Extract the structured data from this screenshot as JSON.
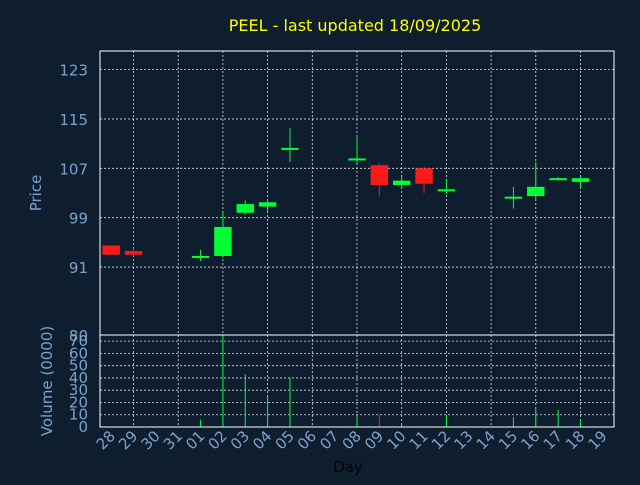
{
  "chart_data": {
    "type": "candlestick",
    "title": "PEEL - last updated 18/09/2025",
    "price_panel": {
      "ylabel": "Price",
      "ylim": [
        80,
        126
      ],
      "yticks": [
        91,
        99,
        107,
        115,
        123
      ],
      "grid": true
    },
    "volume_panel": {
      "ylabel": "Volume (0000)",
      "ylim": [
        0,
        75
      ],
      "yticks": [
        0,
        10,
        20,
        30,
        40,
        50,
        60,
        70
      ],
      "bottom_tick": "80",
      "grid": true
    },
    "xlabel": "Day",
    "categories": [
      "28",
      "29",
      "30",
      "31",
      "01",
      "02",
      "03",
      "04",
      "05",
      "06",
      "07",
      "08",
      "09",
      "10",
      "11",
      "12",
      "13",
      "14",
      "15",
      "16",
      "17",
      "18",
      "19"
    ],
    "candles": [
      {
        "x": "28",
        "open": 94.5,
        "high": 94.5,
        "low": 93.0,
        "close": 93.0,
        "volume": 0
      },
      {
        "x": "29",
        "open": 93.6,
        "high": 94.0,
        "low": 92.8,
        "close": 93.0,
        "volume": 0.5
      },
      {
        "x": "01",
        "open": 92.6,
        "high": 93.8,
        "low": 92.0,
        "close": 92.8,
        "volume": 6
      },
      {
        "x": "02",
        "open": 92.8,
        "high": 100.0,
        "low": 92.5,
        "close": 97.5,
        "volume": 74
      },
      {
        "x": "03",
        "open": 99.8,
        "high": 101.8,
        "low": 99.5,
        "close": 101.2,
        "volume": 43
      },
      {
        "x": "04",
        "open": 100.8,
        "high": 102.0,
        "low": 100.0,
        "close": 101.5,
        "volume": 25
      },
      {
        "x": "05",
        "open": 110.2,
        "high": 113.5,
        "low": 108.0,
        "close": 110.3,
        "volume": 40
      },
      {
        "x": "08",
        "open": 108.5,
        "high": 112.0,
        "low": 107.8,
        "close": 108.6,
        "volume": 8
      },
      {
        "x": "09",
        "open": 107.5,
        "high": 107.8,
        "low": 102.5,
        "close": 104.3,
        "volume": 10
      },
      {
        "x": "10",
        "open": 104.3,
        "high": 105.6,
        "low": 104.0,
        "close": 105.0,
        "volume": 2
      },
      {
        "x": "11",
        "open": 107.0,
        "high": 107.2,
        "low": 103.0,
        "close": 104.5,
        "volume": 1
      },
      {
        "x": "12",
        "open": 103.4,
        "high": 105.2,
        "low": 102.8,
        "close": 103.6,
        "volume": 9
      },
      {
        "x": "15",
        "open": 102.3,
        "high": 104.0,
        "low": 100.5,
        "close": 102.4,
        "volume": 8
      },
      {
        "x": "16",
        "open": 102.5,
        "high": 108.0,
        "low": 102.0,
        "close": 104.0,
        "volume": 15
      },
      {
        "x": "17",
        "open": 105.3,
        "high": 105.6,
        "low": 105.0,
        "close": 105.4,
        "volume": 14
      },
      {
        "x": "18",
        "open": 104.8,
        "high": 105.6,
        "low": 103.8,
        "close": 105.4,
        "volume": 5
      }
    ],
    "colors": {
      "background": "#0f1e2f",
      "title": "#ffff00",
      "up": "#00ff33",
      "down": "#ff1a1a",
      "axis_text": "#7aa3cc",
      "frame": "#ffffff",
      "grid": "#ffffff",
      "xlabel": "#000000"
    }
  }
}
